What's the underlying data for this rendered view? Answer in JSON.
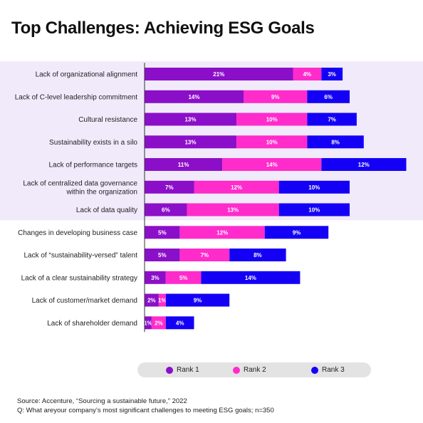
{
  "title": "Top Challenges: Achieving ESG Goals",
  "colors": {
    "rank1": "#8b0fc8",
    "rank2": "#ff2bcb",
    "rank3": "#1400f5",
    "highlight_band": "#f1eafb",
    "legend_bg": "#e3e3e3"
  },
  "highlight_rows": 7,
  "chart_data": {
    "type": "bar",
    "orientation": "horizontal",
    "stacked": true,
    "title": "Top Challenges: Achieving ESG Goals",
    "categories": [
      [
        "Lack of organizational alignment"
      ],
      [
        "Lack of C-level leadership commitment"
      ],
      [
        "Cultural resistance"
      ],
      [
        "Sustainability exists in a silo"
      ],
      [
        "Lack of performance targets"
      ],
      [
        "Lack of centralized data governance",
        "within the organization"
      ],
      [
        "Lack of data quality"
      ],
      [
        "Changes in developing business case"
      ],
      [
        "Lack of “sustainability-versed” talent"
      ],
      [
        "Lack of a clear sustainability strategy"
      ],
      [
        "Lack of customer/market demand"
      ],
      [
        "Lack of shareholder demand"
      ]
    ],
    "series": [
      {
        "name": "Rank 1",
        "values": [
          21,
          14,
          13,
          13,
          11,
          7,
          6,
          5,
          5,
          3,
          2,
          1
        ]
      },
      {
        "name": "Rank 2",
        "values": [
          4,
          9,
          10,
          10,
          14,
          12,
          13,
          12,
          7,
          5,
          1,
          2
        ]
      },
      {
        "name": "Rank 3",
        "values": [
          3,
          6,
          7,
          8,
          12,
          10,
          10,
          9,
          8,
          14,
          9,
          4
        ]
      }
    ],
    "value_suffix": "%",
    "xlim": [
      0,
      38
    ],
    "legend": {
      "position": "bottom",
      "entries": [
        "Rank 1",
        "Rank 2",
        "Rank 3"
      ]
    }
  },
  "legend": {
    "rank1": "Rank 1",
    "rank2": "Rank 2",
    "rank3": "Rank 3"
  },
  "source": {
    "line1": "Source: Accenture, “Sourcing a sustainable future,” 2022",
    "line2": "Q: What areyour company’s most significant challenges to meeting ESG goals; n=350"
  }
}
